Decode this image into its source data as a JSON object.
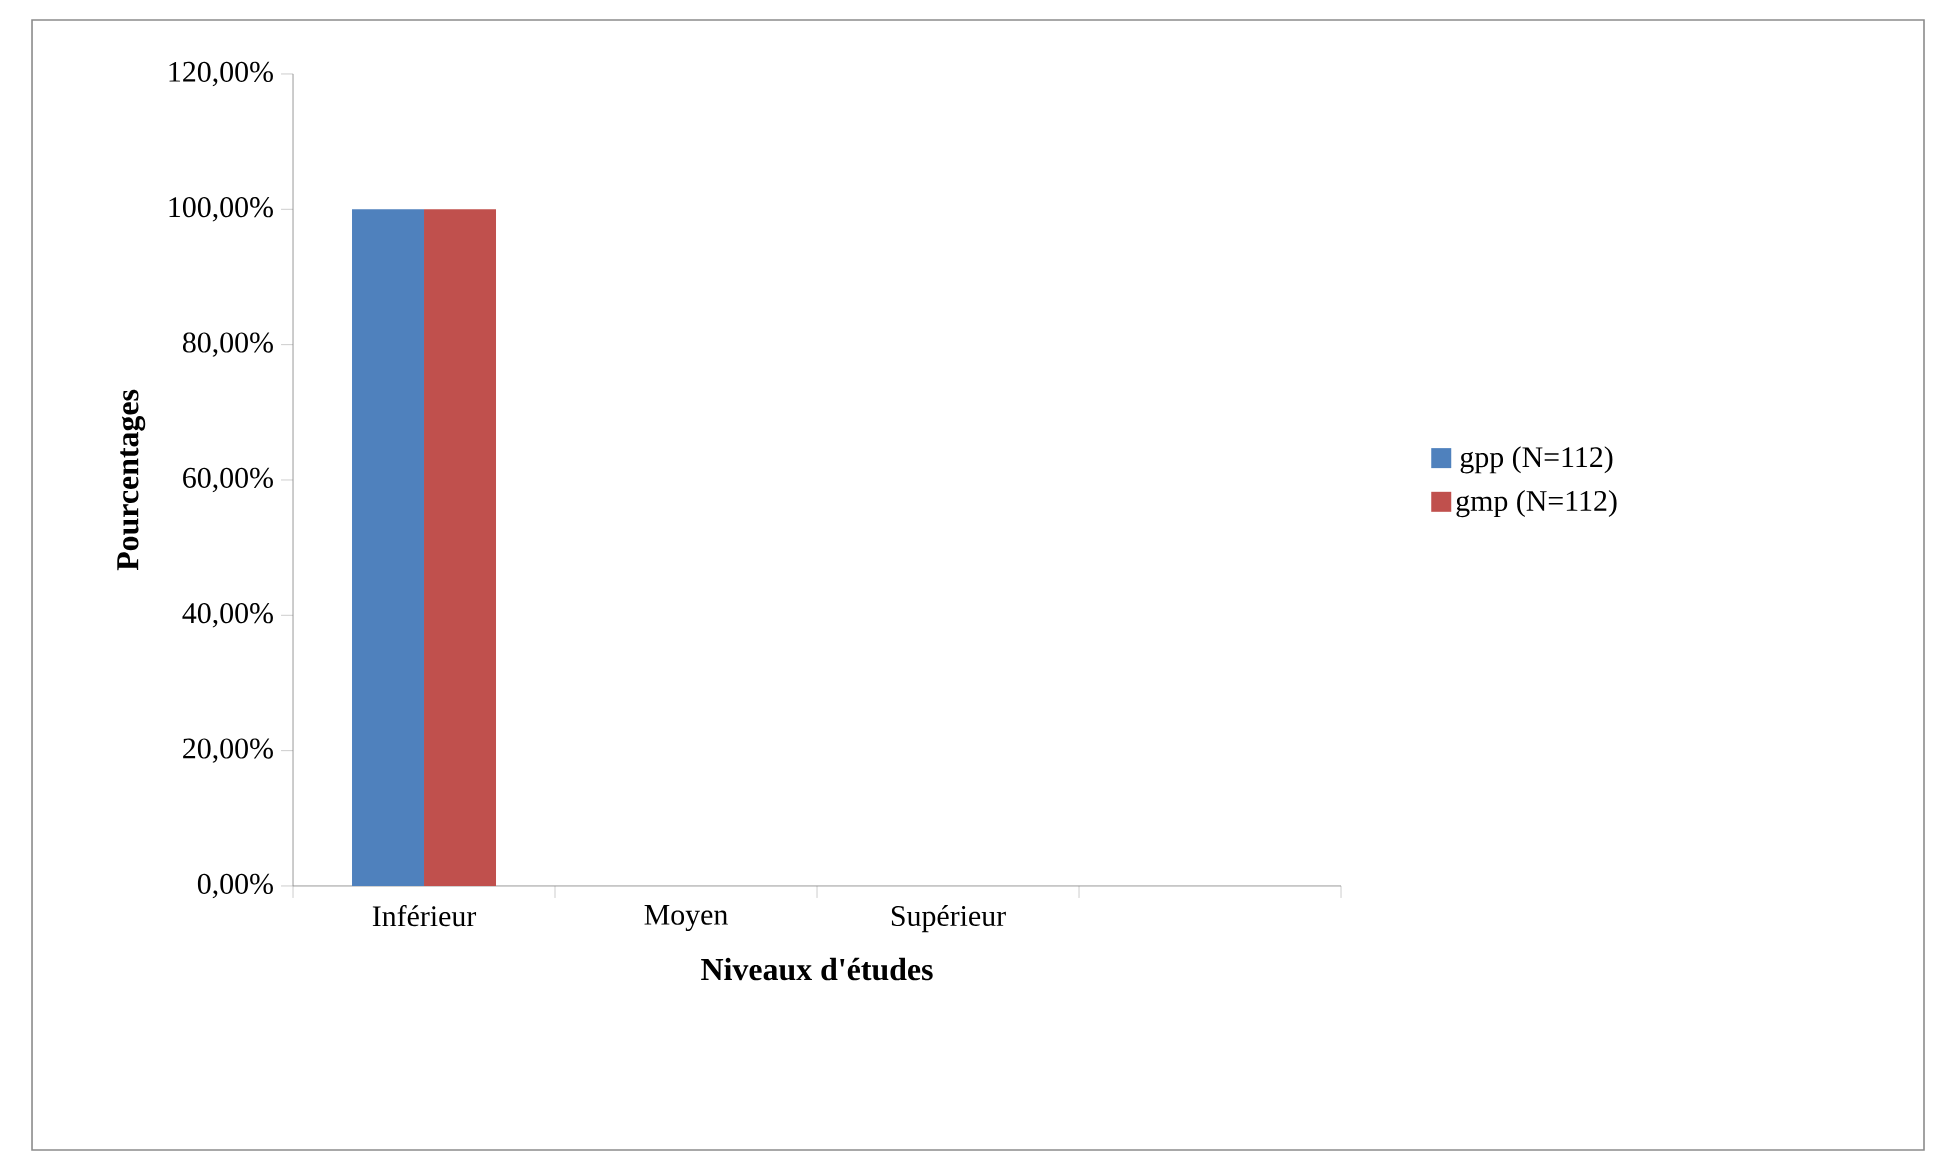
{
  "chart_data": {
    "type": "bar",
    "xlabel": "Niveaux d'études",
    "ylabel": "Pourcentages",
    "categories": [
      "Inférieur",
      "Moyen",
      "Supérieur",
      null
    ],
    "series": [
      {
        "name": "gpp (N=112)",
        "color": "#4f81bd",
        "values": [
          100,
          0,
          0,
          0
        ]
      },
      {
        "name": "gmp (N=112)",
        "color": "#c0504d",
        "values": [
          100,
          0,
          0,
          0
        ]
      }
    ],
    "ylim": [
      0,
      120
    ],
    "yticks": [
      {
        "value": 0,
        "label": "0,00%"
      },
      {
        "value": 20,
        "label": "20,00%"
      },
      {
        "value": 40,
        "label": "40,00%"
      },
      {
        "value": 60,
        "label": "60,00%"
      },
      {
        "value": 80,
        "label": "80,00%"
      },
      {
        "value": 100,
        "label": "100,00%"
      },
      {
        "value": 120,
        "label": "120,00%"
      }
    ],
    "legend": "right"
  }
}
